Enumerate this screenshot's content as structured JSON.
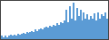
{
  "chart_data": {
    "type": "bar",
    "values": [
      3,
      2,
      3,
      2,
      3,
      4,
      3,
      4,
      3,
      5,
      4,
      5,
      6,
      5,
      7,
      6,
      7,
      8,
      7,
      9,
      8,
      9,
      10,
      9,
      11,
      12,
      11,
      13,
      12,
      14,
      13,
      15,
      14,
      16,
      15,
      18,
      28,
      16,
      32,
      20,
      35,
      18,
      30,
      22,
      28,
      18,
      26,
      20,
      24,
      19,
      22,
      20,
      25,
      18,
      26,
      20,
      24,
      22,
      26,
      20
    ],
    "color": "#5b9bd5",
    "ylim": [
      0,
      36.75
    ],
    "grid": false,
    "tick_labels": false
  }
}
